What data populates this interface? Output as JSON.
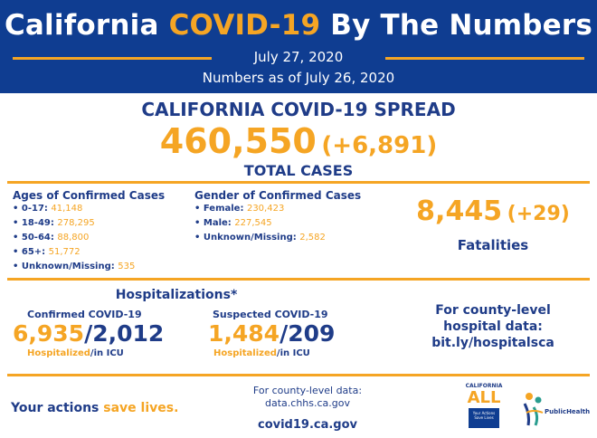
{
  "header": {
    "title_part1": "California",
    "title_accent": "COVID-19",
    "title_part2": "By The Numbers",
    "date": "July 27, 2020",
    "as_of": "Numbers as of July 26, 2020"
  },
  "spread": {
    "title": "CALIFORNIA COVID-19 SPREAD",
    "total": "460,550",
    "delta": "(+6,891)",
    "label": "TOTAL CASES"
  },
  "ages": {
    "heading": "Ages of Confirmed Cases",
    "items": [
      {
        "label": "• 0-17:",
        "value": "41,148"
      },
      {
        "label": "• 18-49:",
        "value": "278,295"
      },
      {
        "label": "• 50-64:",
        "value": "88,800"
      },
      {
        "label": "• 65+:",
        "value": "51,772"
      },
      {
        "label": "• Unknown/Missing:",
        "value": "535"
      }
    ]
  },
  "gender": {
    "heading": "Gender of Confirmed Cases",
    "items": [
      {
        "label": "• Female:",
        "value": "230,423"
      },
      {
        "label": "• Male:",
        "value": "227,545"
      },
      {
        "label": "• Unknown/Missing:",
        "value": "2,582"
      }
    ]
  },
  "fatalities": {
    "value": "8,445",
    "delta": "(+29)",
    "label": "Fatalities"
  },
  "hospitalizations": {
    "heading": "Hospitalizations*",
    "confirmed": {
      "label": "Confirmed COVID-19",
      "hospitalized": "6,935",
      "icu": "2,012",
      "sub_hosp": "Hospitalized",
      "sub_icu": "/in ICU"
    },
    "suspected": {
      "label": "Suspected COVID-19",
      "hospitalized": "1,484",
      "icu": "209",
      "sub_hosp": "Hospitalized",
      "sub_icu": "/in ICU"
    }
  },
  "county_hospital": {
    "line1": "For county-level",
    "line2": "hospital data:",
    "line3": "bit.ly/hospitalsca"
  },
  "footer": {
    "actions_pre": "Your actions",
    "actions_accent": "save lives.",
    "county_line1": "For county-level data:",
    "county_line2": "data.chhs.ca.gov",
    "url": "covid19.ca.gov"
  },
  "logos": {
    "ca_top": "CALIFORNIA",
    "ca_main": "ALL",
    "ca_box": "Your Actions Save Lives",
    "ph_text": "PublicHealth"
  },
  "colors": {
    "navy": "#0f3d91",
    "orange": "#f5a524",
    "text_blue": "#1f3c88"
  }
}
